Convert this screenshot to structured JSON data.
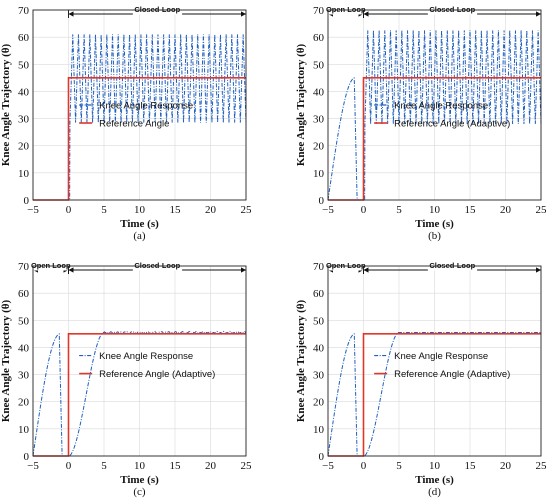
{
  "colors": {
    "response": "#1f5fbf",
    "reference": "#e0372a",
    "grid": "#d9d9d9",
    "axis": "#222222"
  },
  "labels": {
    "x_label": "Time (s)",
    "y_label": "Knee Angle Trajectory (θ)",
    "open_loop": "Open Loop",
    "closed_loop": "Closed-Loop"
  },
  "chart_data": [
    {
      "type": "line",
      "panel": "(a)",
      "caption": "(a)",
      "xlim": [
        -5,
        25
      ],
      "ylim": [
        0,
        70
      ],
      "xticks": [
        -5,
        0,
        5,
        10,
        15,
        20,
        25
      ],
      "yticks": [
        0,
        10,
        20,
        30,
        40,
        50,
        60,
        70
      ],
      "grid": true,
      "legend_position": "center",
      "phases": [
        {
          "label": "Closed-Loop",
          "from": 0,
          "to": 25
        }
      ],
      "series": [
        {
          "name": "Knee Angle Response",
          "style": "dash-dot",
          "shape": "oscillating",
          "baseline_until": 0,
          "oscillation_start": 0.2,
          "oscillation_min": 28.5,
          "oscillation_max": 61,
          "period": 0.8
        },
        {
          "name": "Reference Angle",
          "style": "solid",
          "x": [
            -5,
            0,
            0,
            25
          ],
          "y": [
            0,
            0,
            45,
            45
          ]
        }
      ]
    },
    {
      "type": "line",
      "panel": "(b)",
      "caption": "(b)",
      "xlim": [
        -5,
        25
      ],
      "ylim": [
        0,
        70
      ],
      "xticks": [
        -5,
        0,
        5,
        10,
        15,
        20,
        25
      ],
      "yticks": [
        0,
        10,
        20,
        30,
        40,
        50,
        60,
        70
      ],
      "grid": true,
      "legend_position": "center",
      "phases": [
        {
          "label": "Open Loop",
          "from": -5,
          "to": 0
        },
        {
          "label": "Closed-Loop",
          "from": 0,
          "to": 25
        }
      ],
      "series": [
        {
          "name": "Knee Angle Response",
          "style": "dash-dot",
          "shape": "oscillating",
          "open_loop_rise": {
            "start": -5,
            "end": -1.3,
            "peak": 45,
            "drop_to": 0,
            "drop_end": -0.9
          },
          "baseline_until": 0,
          "oscillation_start": 0.2,
          "oscillation_min": 28,
          "oscillation_max": 62.5,
          "period": 0.8
        },
        {
          "name": "Reference Angle (Adaptive)",
          "style": "solid",
          "x": [
            -5,
            0,
            0,
            25
          ],
          "y": [
            0,
            0,
            45,
            45
          ]
        }
      ]
    },
    {
      "type": "line",
      "panel": "(c)",
      "caption": "(c)",
      "xlim": [
        -5,
        25
      ],
      "ylim": [
        0,
        70
      ],
      "xticks": [
        -5,
        0,
        5,
        10,
        15,
        20,
        25
      ],
      "yticks": [
        0,
        10,
        20,
        30,
        40,
        50,
        60,
        70
      ],
      "grid": true,
      "legend_position": "center",
      "phases": [
        {
          "label": "Open Loop",
          "from": -5,
          "to": 0
        },
        {
          "label": "Closed-Loop",
          "from": 0,
          "to": 25
        }
      ],
      "series": [
        {
          "name": "Knee Angle Response",
          "style": "dash-dot",
          "shape": "settling",
          "open_loop_rise": {
            "start": -5,
            "end": -1.3,
            "peak": 45,
            "drop_to": 0,
            "drop_end": -0.9
          },
          "settle": {
            "start": 0,
            "end": 5,
            "to": 45.5
          },
          "ripple": 0.4
        },
        {
          "name": "Reference Angle (Adaptive)",
          "style": "solid",
          "x": [
            -5,
            0,
            0,
            25
          ],
          "y": [
            0,
            0,
            45,
            45
          ]
        }
      ]
    },
    {
      "type": "line",
      "panel": "(d)",
      "caption": "(d)",
      "xlim": [
        -5,
        25
      ],
      "ylim": [
        0,
        70
      ],
      "xticks": [
        -5,
        0,
        5,
        10,
        15,
        20,
        25
      ],
      "yticks": [
        0,
        10,
        20,
        30,
        40,
        50,
        60,
        70
      ],
      "grid": true,
      "legend_position": "center",
      "phases": [
        {
          "label": "Open Loop",
          "from": -5,
          "to": 0
        },
        {
          "label": "Closed-Loop",
          "from": 0,
          "to": 25
        }
      ],
      "series": [
        {
          "name": "Knee Angle Response",
          "style": "dash-dot",
          "shape": "settling",
          "open_loop_rise": {
            "start": -5,
            "end": -1.3,
            "peak": 45,
            "drop_to": 0,
            "drop_end": -0.9
          },
          "settle": {
            "start": 0,
            "end": 5,
            "to": 45.5
          },
          "ripple": 0
        },
        {
          "name": "Reference Angle (Adaptive)",
          "style": "solid",
          "x": [
            -5,
            0,
            0,
            25
          ],
          "y": [
            0,
            0,
            45,
            45
          ]
        }
      ]
    }
  ]
}
